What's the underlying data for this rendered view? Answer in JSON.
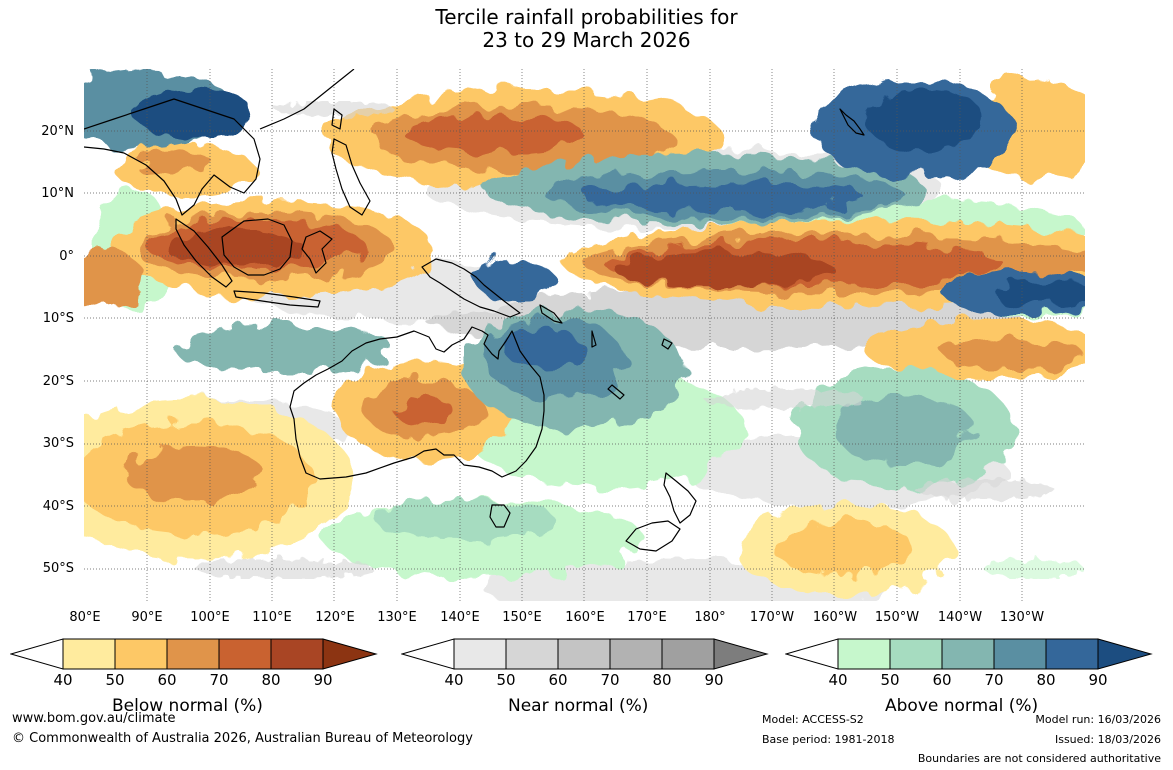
{
  "title": {
    "line1": "Tercile rainfall probabilities for",
    "line2": "23 to 29 March 2026"
  },
  "lat_labels": [
    "20°N",
    "10°N",
    "0°",
    "10°S",
    "20°S",
    "30°S",
    "40°S",
    "50°S"
  ],
  "lon_labels": [
    "80°E",
    "90°E",
    "100°E",
    "110°E",
    "120°E",
    "130°E",
    "140°E",
    "150°E",
    "160°E",
    "170°E",
    "180°",
    "170°W",
    "160°W",
    "150°W",
    "140°W",
    "130°W"
  ],
  "legends": [
    {
      "title": "Below normal (%)",
      "ticks": [
        "40",
        "50",
        "60",
        "70",
        "80",
        "90"
      ],
      "colors": [
        "#ffffff",
        "#ffeb9e",
        "#fdc866",
        "#e0944a",
        "#c96230",
        "#a94524",
        "#8c3412"
      ]
    },
    {
      "title": "Near normal (%)",
      "ticks": [
        "40",
        "50",
        "60",
        "70",
        "80",
        "90"
      ],
      "colors": [
        "#ffffff",
        "#e8e8e8",
        "#d6d6d6",
        "#c4c4c4",
        "#b2b2b2",
        "#a0a0a0",
        "#7d7d7d"
      ]
    },
    {
      "title": "Above normal (%)",
      "ticks": [
        "40",
        "50",
        "60",
        "70",
        "80",
        "90"
      ],
      "colors": [
        "#ffffff",
        "#c6f7cc",
        "#a6dcc0",
        "#83b6b0",
        "#5a8fa2",
        "#34679a",
        "#1c4d80"
      ]
    }
  ],
  "footer": {
    "website": "www.bom.gov.au/climate",
    "copyright": "© Commonwealth of Australia 2026, Australian Bureau of Meteorology",
    "model": "Model: ACCESS-S2",
    "base_period": "Base period: 1981-2018",
    "model_run": "Model run: 16/03/2026",
    "issued": "Issued: 18/03/2026",
    "disclaimer": "Boundaries are not considered authoritative"
  }
}
